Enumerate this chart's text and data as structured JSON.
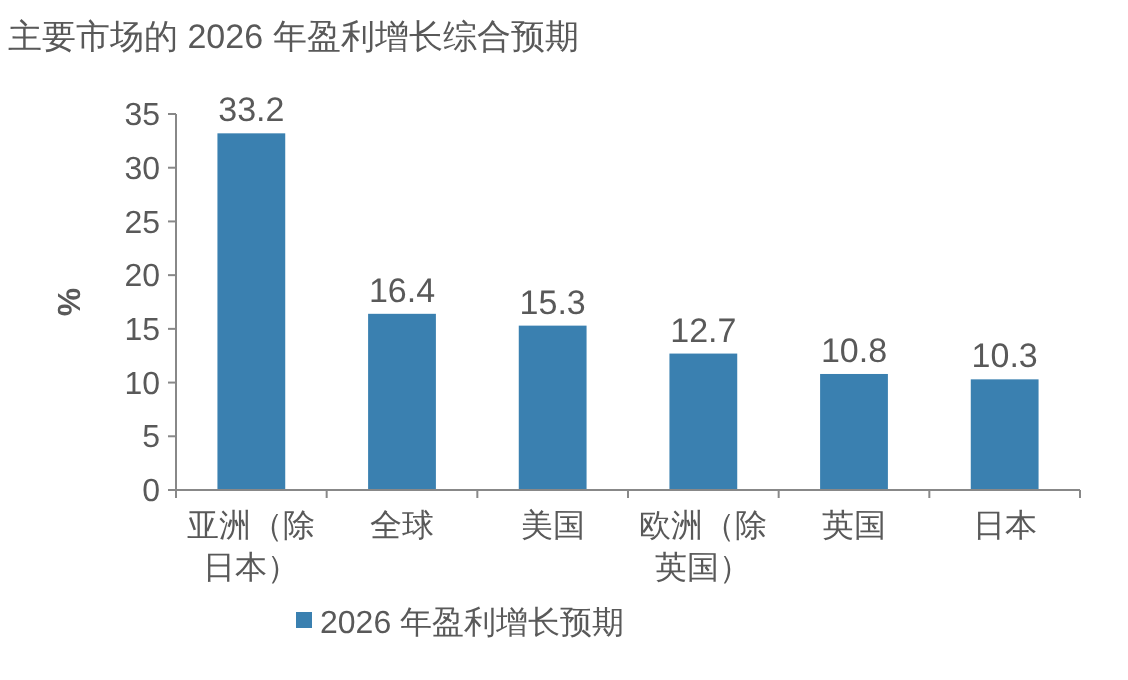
{
  "chart_data": {
    "type": "bar",
    "title": "主要市场的 2026 年盈利增长综合预期",
    "ylabel": "%",
    "categories": [
      "亚洲（除日本）",
      "全球",
      "美国",
      "欧洲（除英国）",
      "英国",
      "日本"
    ],
    "series": [
      {
        "name": "2026 年盈利增长预期",
        "color": "#3a80b0",
        "values": [
          33.2,
          16.4,
          15.3,
          12.7,
          10.8,
          10.3
        ]
      }
    ],
    "ylim": [
      0,
      35
    ],
    "yticks": [
      0,
      5,
      10,
      15,
      20,
      25,
      30,
      35
    ],
    "data_labels": true,
    "legend": "bottom",
    "grid": false
  }
}
